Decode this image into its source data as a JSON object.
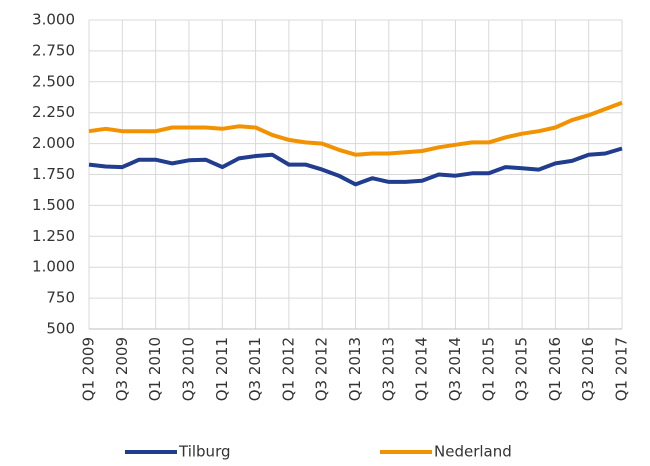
{
  "chart_data": {
    "type": "line",
    "categories": [
      "Q1 2009",
      null,
      "Q3 2009",
      null,
      "Q1 2010",
      null,
      "Q3 2010",
      null,
      "Q1 2011",
      null,
      "Q3 2011",
      null,
      "Q1 2012",
      null,
      "Q3 2012",
      null,
      "Q1 2013",
      null,
      "Q3 2013",
      null,
      "Q1 2014",
      null,
      "Q3 2014",
      null,
      "Q1 2015",
      null,
      "Q3 2015",
      null,
      "Q1 2016",
      null,
      "Q3 2016",
      null,
      "Q1 2017"
    ],
    "series": [
      {
        "name": "Tilburg",
        "color": "#203d8e",
        "values": [
          1830,
          1815,
          1810,
          1870,
          1870,
          1840,
          1865,
          1870,
          1810,
          1880,
          1900,
          1910,
          1830,
          1830,
          1790,
          1740,
          1670,
          1720,
          1690,
          1690,
          1700,
          1750,
          1740,
          1760,
          1760,
          1810,
          1800,
          1790,
          1840,
          1860,
          1910,
          1920,
          1960
        ]
      },
      {
        "name": "Nederland",
        "color": "#f39200",
        "values": [
          2100,
          2120,
          2100,
          2100,
          2100,
          2130,
          2130,
          2130,
          2120,
          2140,
          2130,
          2070,
          2030,
          2010,
          2000,
          1950,
          1910,
          1920,
          1920,
          1930,
          1940,
          1970,
          1990,
          2010,
          2010,
          2050,
          2080,
          2100,
          2130,
          2190,
          2230,
          2280,
          2330
        ]
      }
    ],
    "ylim": [
      500,
      3000
    ],
    "yticks": [
      500,
      750,
      {
        "value": 1000,
        "label": "1.000"
      },
      {
        "value": 1250,
        "label": "1.250"
      },
      {
        "value": 1500,
        "label": "1.500"
      },
      {
        "value": 1750,
        "label": "1.750"
      },
      {
        "value": 2000,
        "label": "2.000"
      },
      {
        "value": 2250,
        "label": "2.250"
      },
      {
        "value": 2500,
        "label": "2.500"
      },
      {
        "value": 2750,
        "label": "2.750"
      },
      {
        "value": 3000,
        "label": "3.000"
      }
    ],
    "grid": true,
    "legend": "bottom"
  }
}
